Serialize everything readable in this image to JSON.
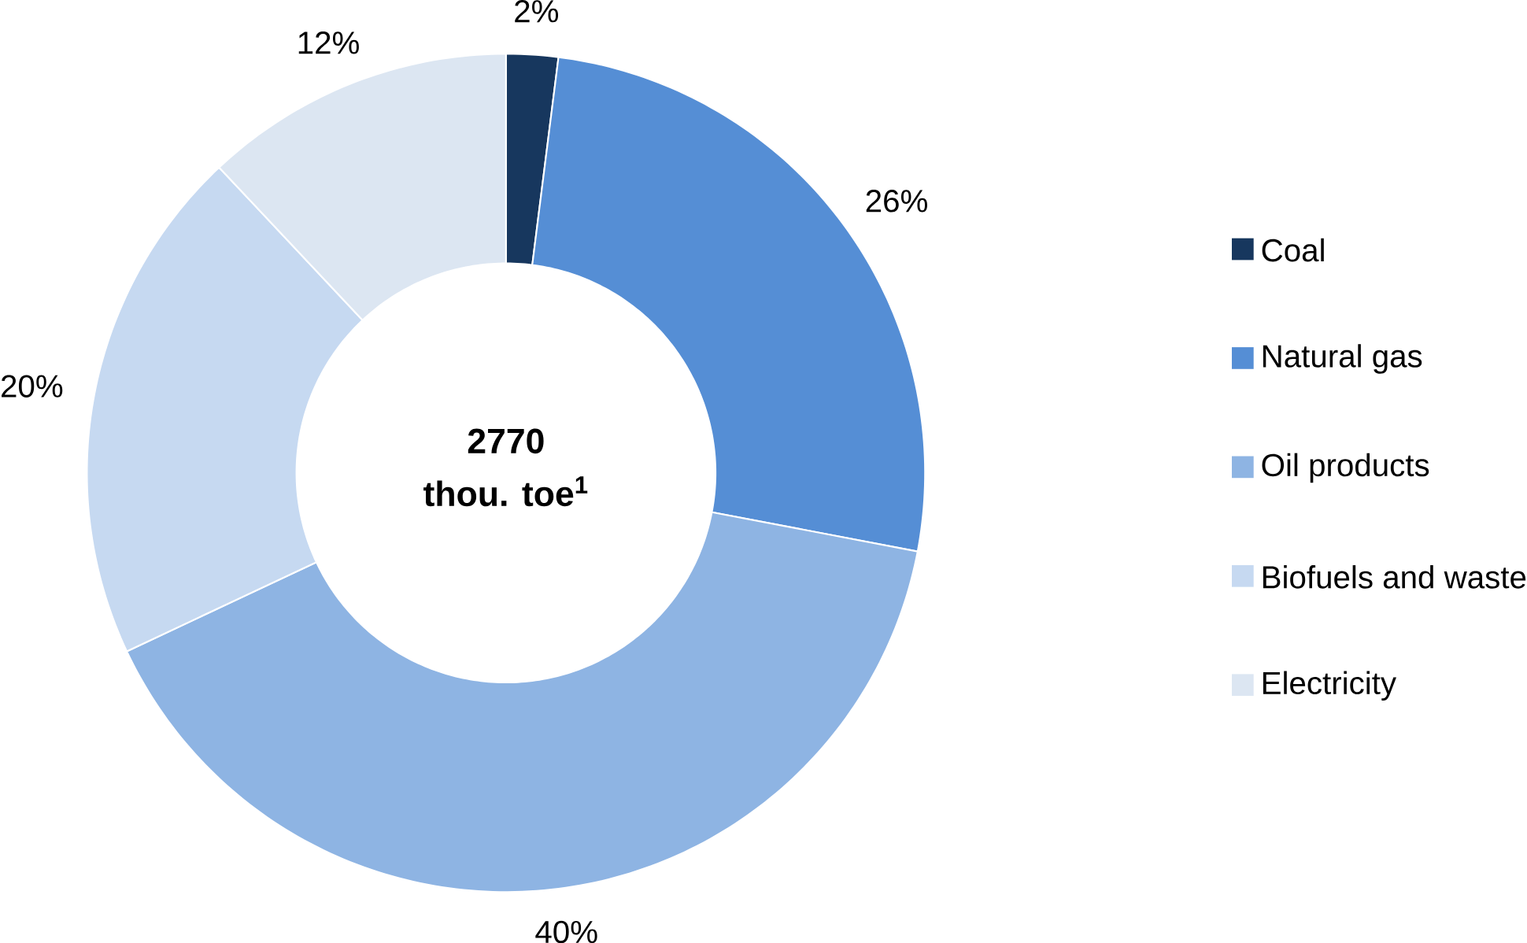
{
  "chart_data": {
    "type": "donut",
    "categories": [
      "Coal",
      "Natural gas",
      "Oil products",
      "Biofuels and waste",
      "Electricity"
    ],
    "values": [
      2,
      26,
      40,
      20,
      12
    ],
    "colors": [
      "#17375e",
      "#558ed5",
      "#8eb4e3",
      "#c6d9f1",
      "#dce6f2"
    ],
    "value_labels": [
      "2%",
      "26%",
      "40%",
      "20%",
      "12%"
    ],
    "annotations": [
      "2770",
      "thou. toe$^{1}$"
    ],
    "legend": "right"
  }
}
